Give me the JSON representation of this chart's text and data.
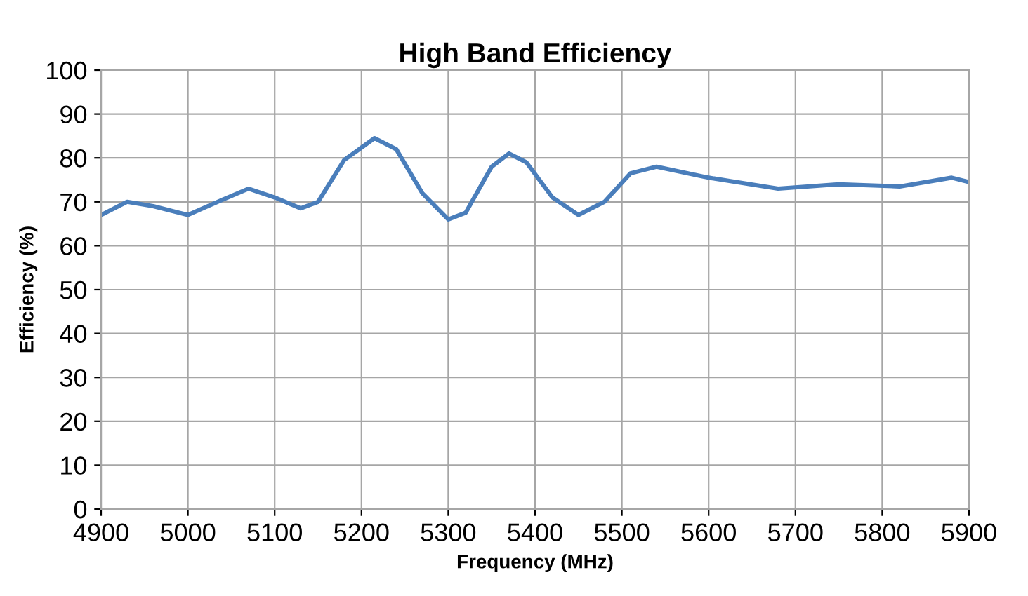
{
  "chart_data": {
    "type": "line",
    "title": "High Band Efficiency",
    "xlabel": "Frequency (MHz)",
    "ylabel": "Efficiency (%)",
    "x": [
      4900,
      4930,
      4960,
      5000,
      5040,
      5070,
      5100,
      5130,
      5150,
      5180,
      5215,
      5240,
      5270,
      5300,
      5320,
      5350,
      5370,
      5390,
      5420,
      5450,
      5480,
      5510,
      5540,
      5600,
      5680,
      5750,
      5820,
      5880,
      5900
    ],
    "series": [
      {
        "color": "#4a7ebb",
        "values": [
          67,
          70,
          69,
          67,
          70.5,
          73,
          71,
          68.5,
          70,
          79.5,
          84.5,
          82,
          72,
          66,
          67.5,
          78,
          81,
          79,
          71,
          67,
          70,
          76.5,
          78,
          75.5,
          73,
          74,
          73.5,
          75.5,
          74.5
        ]
      }
    ],
    "xlim": [
      4900,
      5900
    ],
    "xticks": [
      4900,
      5000,
      5100,
      5200,
      5300,
      5400,
      5500,
      5600,
      5700,
      5800,
      5900
    ],
    "ylim": [
      0,
      100
    ],
    "yticks": [
      0,
      10,
      20,
      30,
      40,
      50,
      60,
      70,
      80,
      90,
      100
    ],
    "grid": true,
    "legend": false,
    "line_style": "solid"
  }
}
